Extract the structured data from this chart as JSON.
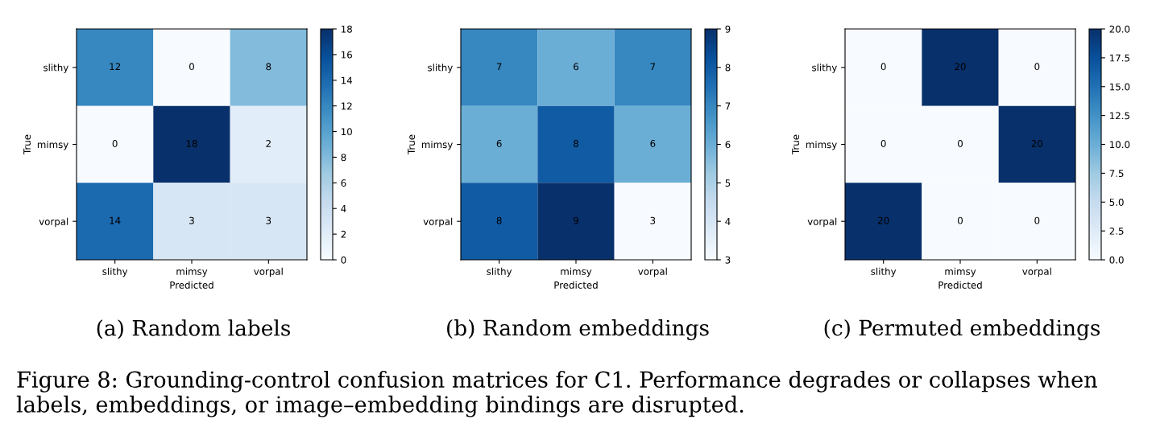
{
  "chart_data": [
    {
      "type": "heatmap",
      "title": "(a) Random labels",
      "xlabel": "Predicted",
      "ylabel": "True",
      "categories": [
        "slithy",
        "mimsy",
        "vorpal"
      ],
      "y_categories": [
        "slithy",
        "mimsy",
        "vorpal"
      ],
      "cells": [
        [
          12,
          0,
          8
        ],
        [
          0,
          18,
          2
        ],
        [
          14,
          3,
          3
        ]
      ],
      "data_labels": true,
      "clim": [
        0,
        18
      ],
      "cticks": [
        0,
        2,
        4,
        6,
        8,
        10,
        12,
        14,
        16,
        18
      ]
    },
    {
      "type": "heatmap",
      "title": "(b) Random embeddings",
      "xlabel": "Predicted",
      "ylabel": "True",
      "categories": [
        "slithy",
        "mimsy",
        "vorpal"
      ],
      "y_categories": [
        "slithy",
        "mimsy",
        "vorpal"
      ],
      "cells": [
        [
          7,
          6,
          7
        ],
        [
          6,
          8,
          6
        ],
        [
          8,
          9,
          3
        ]
      ],
      "data_labels": true,
      "clim": [
        3,
        9
      ],
      "cticks": [
        3,
        4,
        5,
        6,
        7,
        8,
        9
      ]
    },
    {
      "type": "heatmap",
      "title": "(c) Permuted embeddings",
      "xlabel": "Predicted",
      "ylabel": "True",
      "categories": [
        "slithy",
        "mimsy",
        "vorpal"
      ],
      "y_categories": [
        "slithy",
        "mimsy",
        "vorpal"
      ],
      "cells": [
        [
          0,
          20,
          0
        ],
        [
          0,
          0,
          20
        ],
        [
          20,
          0,
          0
        ]
      ],
      "data_labels": true,
      "clim": [
        0,
        20
      ],
      "cticks": [
        {
          "value": 0,
          "label": "0.0"
        },
        {
          "value": 2.5,
          "label": "2.5"
        },
        {
          "value": 5,
          "label": "5.0"
        },
        {
          "value": 7.5,
          "label": "7.5"
        },
        {
          "value": 10,
          "label": "10.0"
        },
        {
          "value": 12.5,
          "label": "12.5"
        },
        {
          "value": 15,
          "label": "15.0"
        },
        {
          "value": 17.5,
          "label": "17.5"
        },
        {
          "value": 20,
          "label": "20.0"
        }
      ],
      "annotations": [
        "Figure 8: Grounding-control confusion matrices for C1. Performance degrades or collapses when labels, embeddings, or image–embedding bindings are disrupted."
      ]
    }
  ]
}
